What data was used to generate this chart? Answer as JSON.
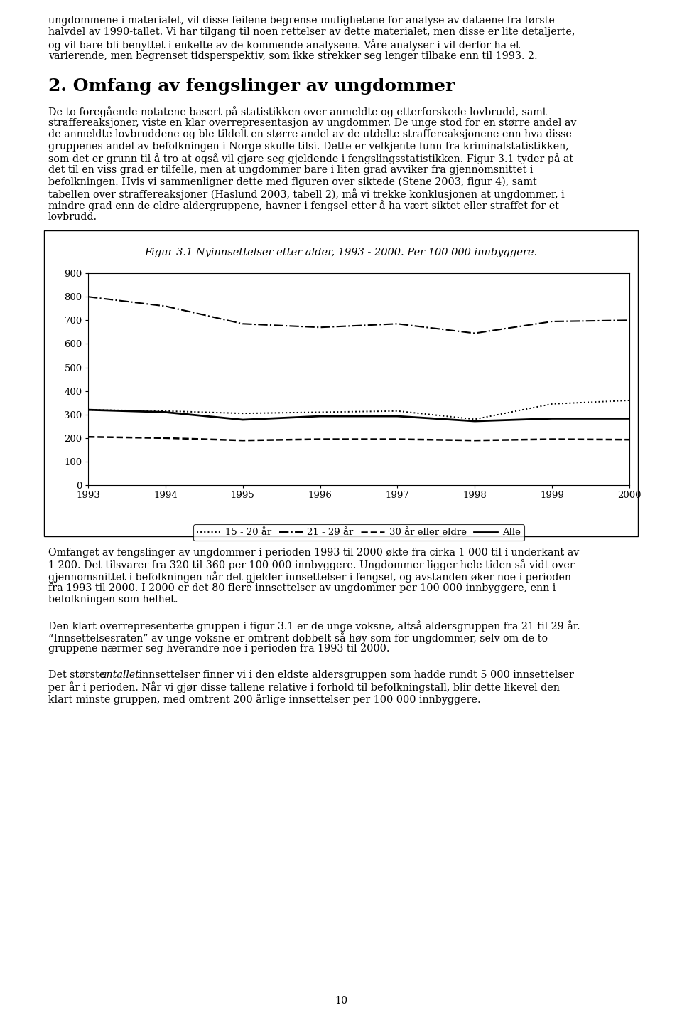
{
  "title": "Figur 3.1 Nyinnsettelser etter alder, 1993 - 2000. Per 100 000 innbyggere.",
  "years": [
    1993,
    1994,
    1995,
    1996,
    1997,
    1998,
    1999,
    2000
  ],
  "series": {
    "15_20": [
      320,
      315,
      305,
      310,
      315,
      280,
      345,
      360
    ],
    "21_29": [
      800,
      760,
      685,
      670,
      685,
      645,
      695,
      700
    ],
    "30_eldre": [
      205,
      200,
      190,
      195,
      195,
      190,
      195,
      193
    ],
    "alle": [
      320,
      310,
      278,
      293,
      293,
      272,
      283,
      283
    ]
  },
  "ylim": [
    0,
    900
  ],
  "yticks": [
    0,
    100,
    200,
    300,
    400,
    500,
    600,
    700,
    800,
    900
  ],
  "xtick_labels": [
    "1993",
    "1994",
    "1995",
    "1996",
    "1997",
    "1998",
    "1999",
    "2000"
  ],
  "background_color": "#ffffff",
  "text_color": "#000000",
  "font_family": "DejaVu Serif",
  "page_number": "10",
  "top_para_lines": [
    "ungdommene i materialet, vil disse feilene begrense mulighetene for analyse av dataene fra første",
    "halvdel av 1990-tallet. Vi har tilgang til noen rettelser av dette materialet, men disse er lite detaljerte,",
    "og vil bare bli benyttet i enkelte av de kommende analysene. Våre analyser i vil derfor ha et",
    "varierende, men begrenset tidsperspektiv, som ikke strekker seg lenger tilbake enn til 1993. 2."
  ],
  "section_heading": "2. Omfang av fengslinger av ungdommer",
  "para1_lines": [
    "De to foregående notatene basert på statistikken over anmeldte og etterforskede lovbrudd, samt",
    "straffereaksjoner, viste en klar overrepresentasjon av ungdommer. De unge stod for en større andel av",
    "de anmeldte lovbruddene og ble tildelt en større andel av de utdelte straffereaksjonene enn hva disse",
    "gruppenes andel av befolkningen i Norge skulle tilsi. Dette er velkjente funn fra kriminalstatistikken,",
    "som det er grunn til å tro at også vil gjøre seg gjeldende i fengslingsstatistikken. Figur 3.1 tyder på at",
    "det til en viss grad er tilfelle, men at ungdommer bare i liten grad avviker fra gjennomsnittet i",
    "befolkningen. Hvis vi sammenligner dette med figuren over siktede (Stene 2003, figur 4), samt",
    "tabellen over straffereaksjoner (Haslund 2003, tabell 2), må vi trekke konklusjonen at ungdommer, i",
    "mindre grad enn de eldre aldergruppene, havner i fengsel etter å ha vært siktet eller straffet for et",
    "lovbrudd."
  ],
  "para2_lines": [
    "Omfanget av fengslinger av ungdommer i perioden 1993 til 2000 økte fra cirka 1 000 til i underkant av",
    "1 200. Det tilsvarer fra 320 til 360 per 100 000 innbyggere. Ungdommer ligger hele tiden så vidt over",
    "gjennomsnittet i befolkningen når det gjelder innsettelser i fengsel, og avstanden øker noe i perioden",
    "fra 1993 til 2000. I 2000 er det 80 flere innsettelser av ungdommer per 100 000 innbyggere, enn i",
    "befolkningen som helhet."
  ],
  "para3_lines": [
    "Den klart overrepresenterte gruppen i figur 3.1 er de unge voksne, altså aldersgruppen fra 21 til 29 år.",
    "“Innsettelsesraten” av unge voksne er omtrent dobbelt så høy som for ungdommer, selv om de to",
    "gruppene nærmer seg hverandre noe i perioden fra 1993 til 2000."
  ],
  "para4_lines": [
    "Det største antallet innsettelser finner vi i den eldste aldersgruppen som hadde rundt 5 000 innsettelser",
    "per år i perioden. Når vi gjør disse tallene relative i forhold til befolkningstall, blir dette likevel den",
    "klart minste gruppen, med omtrent 200 årlige innsettelser per 100 000 innbyggere."
  ]
}
